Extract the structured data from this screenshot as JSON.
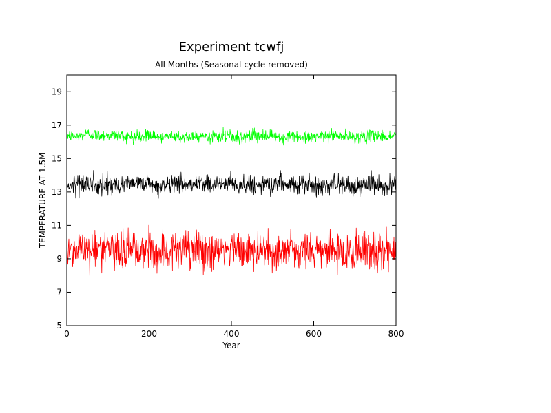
{
  "chart_data": {
    "type": "line",
    "title": "Experiment tcwfj",
    "subtitle": "All Months (Seasonal cycle removed)",
    "xlabel": "Year",
    "ylabel": "TEMPERATURE AT 1.5M",
    "xlim": [
      0,
      800
    ],
    "ylim": [
      5,
      20
    ],
    "x_ticks": [
      0,
      200,
      400,
      600,
      800
    ],
    "y_ticks": [
      5,
      7,
      9,
      11,
      13,
      15,
      17,
      19
    ],
    "grid": false,
    "legend": "none",
    "series": [
      {
        "color": "#00ff00",
        "x": [
          0,
          25,
          50,
          75,
          100,
          125,
          150,
          175,
          200,
          225,
          250,
          275,
          300,
          325,
          350,
          375,
          400,
          425,
          450,
          475,
          500,
          525,
          550,
          575,
          600,
          625,
          650,
          675,
          700,
          725,
          750,
          775,
          800
        ],
        "values": [
          16.4,
          16.3,
          16.5,
          16.4,
          16.4,
          16.4,
          16.3,
          16.3,
          16.4,
          16.2,
          16.4,
          16.3,
          16.3,
          16.4,
          16.3,
          16.4,
          16.3,
          16.3,
          16.4,
          16.3,
          16.3,
          16.3,
          16.3,
          16.2,
          16.3,
          16.3,
          16.4,
          16.3,
          16.3,
          16.3,
          16.4,
          16.3,
          16.4
        ],
        "range": [
          15.8,
          16.9
        ]
      },
      {
        "color": "#000000",
        "x": [
          0,
          25,
          50,
          75,
          100,
          125,
          150,
          175,
          200,
          225,
          250,
          275,
          300,
          325,
          350,
          375,
          400,
          425,
          450,
          475,
          500,
          525,
          550,
          575,
          600,
          625,
          650,
          675,
          700,
          725,
          750,
          775,
          800
        ],
        "values": [
          13.4,
          13.5,
          13.5,
          13.4,
          13.5,
          13.4,
          13.4,
          13.5,
          13.4,
          13.3,
          13.4,
          13.5,
          13.4,
          13.5,
          13.4,
          13.5,
          13.4,
          13.4,
          13.4,
          13.4,
          13.4,
          13.5,
          13.4,
          13.4,
          13.4,
          13.4,
          13.5,
          13.4,
          13.3,
          13.4,
          13.5,
          13.4,
          13.4
        ],
        "range": [
          12.5,
          14.3
        ]
      },
      {
        "color": "#ff0000",
        "x": [
          0,
          25,
          50,
          75,
          100,
          125,
          150,
          175,
          200,
          225,
          250,
          275,
          300,
          325,
          350,
          375,
          400,
          425,
          450,
          475,
          500,
          525,
          550,
          575,
          600,
          625,
          650,
          675,
          700,
          725,
          750,
          775,
          800
        ],
        "values": [
          9.5,
          9.6,
          9.6,
          9.7,
          9.5,
          9.5,
          9.6,
          9.5,
          9.5,
          9.4,
          9.6,
          9.5,
          9.5,
          9.4,
          9.5,
          9.5,
          9.5,
          9.5,
          9.4,
          9.5,
          9.4,
          9.5,
          9.5,
          9.4,
          9.5,
          9.5,
          9.4,
          9.5,
          9.4,
          9.5,
          9.5,
          9.4,
          9.5
        ],
        "range": [
          7.7,
          11.4
        ]
      }
    ]
  }
}
